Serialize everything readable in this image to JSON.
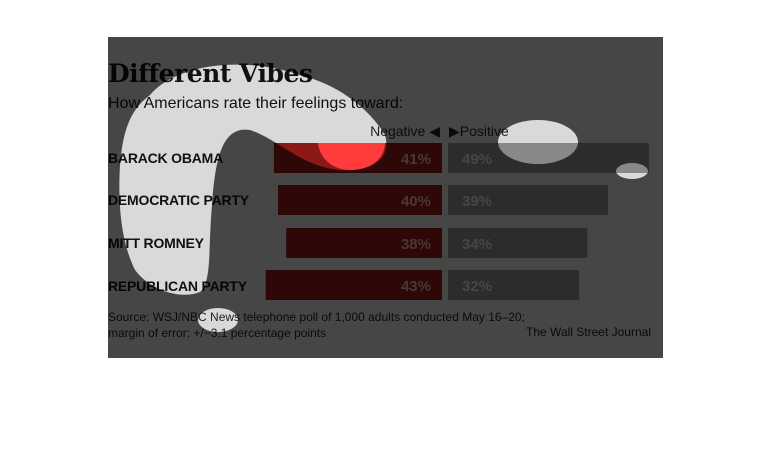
{
  "title": "Different Vibes",
  "subtitle": "How Americans rate their feelings toward:",
  "direction_labels": {
    "negative": "Negative ◀",
    "positive": "▶Positive"
  },
  "source_line1": "Source: WSJ/NBC News telephone poll of 1,000 adults conducted May 16–20;",
  "source_line2": "margin of error: +/−3.1 percentage points",
  "credit": "The Wall Street Journal",
  "colors": {
    "negative": "#8b1a17",
    "positive": "#888888",
    "negative_label": "#e6a8a2",
    "positive_label": "#d8d8d8",
    "dim_overlay": "#000000",
    "highlight": "#ff3b3b"
  },
  "chart_data": {
    "type": "bar",
    "orientation": "diverging-horizontal",
    "categories": [
      "BARACK OBAMA",
      "DEMOCRATIC PARTY",
      "MITT ROMNEY",
      "REPUBLICAN PARTY"
    ],
    "series": [
      {
        "name": "Negative",
        "values": [
          41,
          40,
          38,
          43
        ],
        "labels": [
          "41%",
          "40%",
          "38%",
          "43%"
        ]
      },
      {
        "name": "Positive",
        "values": [
          49,
          39,
          34,
          32
        ],
        "labels": [
          "49%",
          "39%",
          "34%",
          "32%"
        ]
      }
    ]
  }
}
